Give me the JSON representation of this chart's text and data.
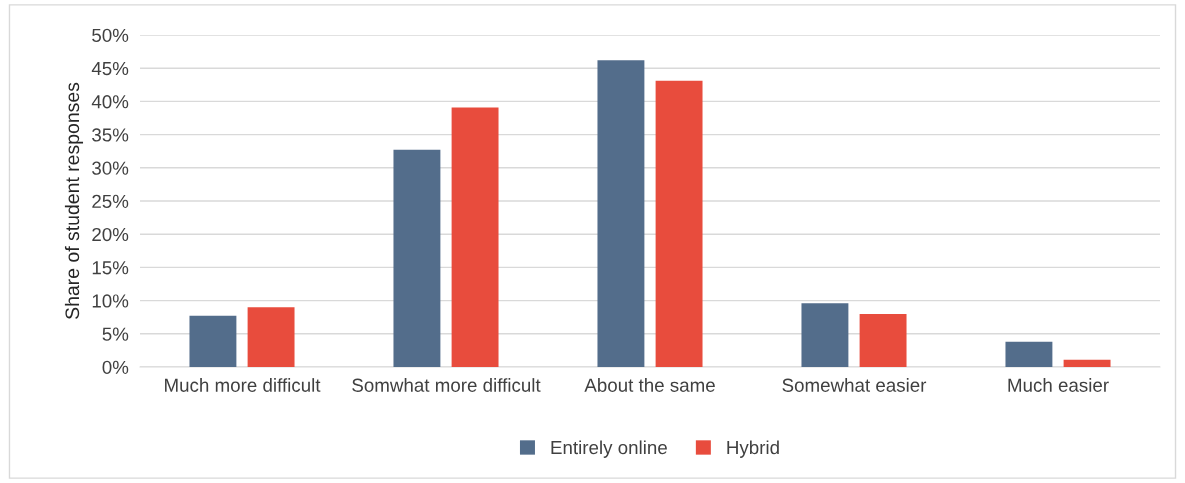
{
  "chart_data": {
    "type": "bar",
    "ylabel": "Share of student responses",
    "categories": [
      "Much more difficult",
      "Somwhat more difficult",
      "About the same",
      "Somewhat easier",
      "Much easier"
    ],
    "series": [
      {
        "name": "Entirely online",
        "color": "#536d8b",
        "values": [
          7.7,
          32.7,
          46.2,
          9.6,
          3.8
        ]
      },
      {
        "name": "Hybrid",
        "color": "#e84c3d",
        "values": [
          9.0,
          39.1,
          43.1,
          8.0,
          1.1
        ]
      }
    ],
    "ylim": [
      0,
      50
    ],
    "yticks": [
      {
        "value": 0,
        "label": "0%"
      },
      {
        "value": 5,
        "label": "5%"
      },
      {
        "value": 10,
        "label": "10%"
      },
      {
        "value": 15,
        "label": "15%"
      },
      {
        "value": 20,
        "label": "20%"
      },
      {
        "value": 25,
        "label": "25%"
      },
      {
        "value": 30,
        "label": "30%"
      },
      {
        "value": 35,
        "label": "35%"
      },
      {
        "value": 40,
        "label": "40%"
      },
      {
        "value": 45,
        "label": "45%"
      },
      {
        "value": 50,
        "label": "50%"
      }
    ],
    "grid": "y",
    "legend": "bottom"
  }
}
